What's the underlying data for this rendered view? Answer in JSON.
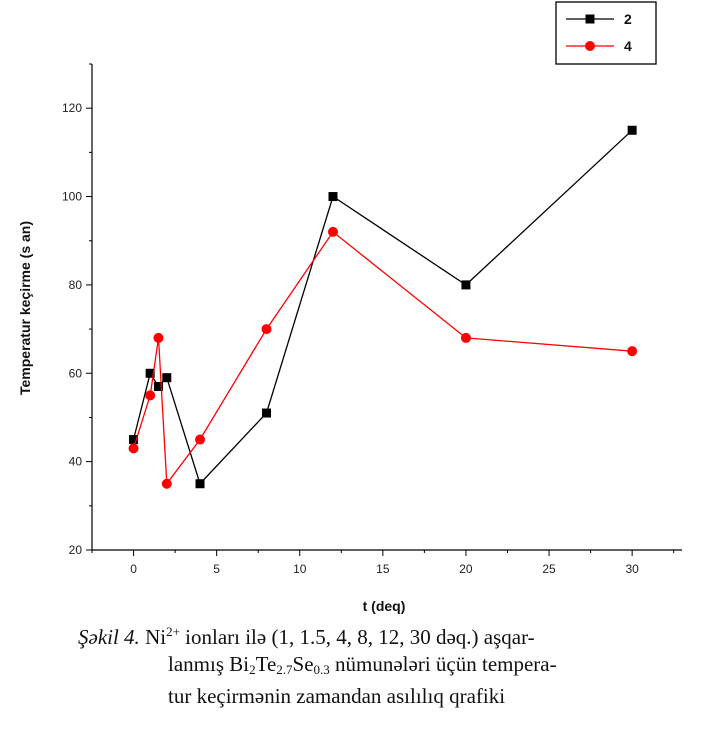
{
  "chart_data": {
    "type": "line",
    "xlabel": "t (deq)",
    "ylabel": "Temperatur keçirme (s an)",
    "xlim": [
      -2.5,
      33
    ],
    "ylim": [
      20,
      130
    ],
    "xticks": [
      0,
      5,
      10,
      15,
      20,
      25,
      30
    ],
    "yticks": [
      20,
      40,
      60,
      80,
      100,
      120
    ],
    "grid": false,
    "legend_position": "top-right, outside plot",
    "series": [
      {
        "name": "2",
        "color": "#000000",
        "marker": "square",
        "points": [
          [
            0,
            45
          ],
          [
            1,
            60
          ],
          [
            1.5,
            57
          ],
          [
            2,
            59
          ],
          [
            4,
            35
          ],
          [
            8,
            51
          ],
          [
            12,
            100
          ],
          [
            20,
            80
          ],
          [
            30,
            115
          ]
        ]
      },
      {
        "name": "4",
        "color": "#ff0000",
        "marker": "circle",
        "points": [
          [
            0,
            43
          ],
          [
            1,
            55
          ],
          [
            1.5,
            68
          ],
          [
            2,
            35
          ],
          [
            4,
            45
          ],
          [
            8,
            70
          ],
          [
            12,
            92
          ],
          [
            20,
            68
          ],
          [
            30,
            65
          ]
        ]
      }
    ]
  },
  "caption": {
    "label": "Şəkil 4.",
    "line1_a": " Ni",
    "line1_sup": "2+",
    "line1_b": " ionları ilə (1, 1.5, 4, 8, 12, 30 dəq.) aşqar-",
    "line2_a": "lanmış Bi",
    "line2_sub1": "2",
    "line2_b": "Te",
    "line2_sub2": "2.7",
    "line2_c": "Se",
    "line2_sub3": "0.3",
    "line2_d": " nümunələri üçün tempera-",
    "line3": "tur keçirmənin zamandan asılılıq qrafiki"
  }
}
